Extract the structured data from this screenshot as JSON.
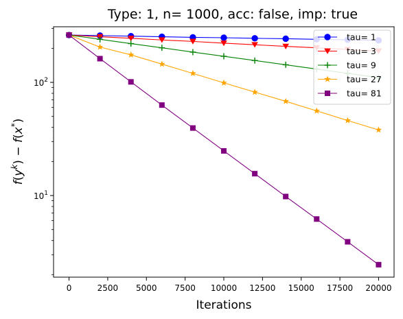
{
  "chart_data": {
    "type": "line",
    "title": "Type: 1, n= 1000, acc: false, imp: true",
    "xlabel": "Iterations",
    "ylabel_parts": {
      "f": "f",
      "lp": "(",
      "y": "y",
      "k": "k",
      "rp1": ")",
      "minus": " − ",
      "f2": "f",
      "lp2": "(",
      "x": "x",
      "star": "*",
      "rp2": ")"
    },
    "y_scale": "log",
    "xlim": [
      -1000,
      21000
    ],
    "ylim": [
      1.9,
      310
    ],
    "x_ticks": [
      0,
      2500,
      5000,
      7500,
      10000,
      12500,
      15000,
      17500,
      20000
    ],
    "y_ticks": [
      {
        "value": 10,
        "base": "10",
        "exp": "1"
      },
      {
        "value": 100,
        "base": "10",
        "exp": "2"
      }
    ],
    "grid": false,
    "legend_position": "top-right",
    "x": [
      0,
      2000,
      4000,
      6000,
      8000,
      10000,
      12000,
      14000,
      16000,
      18000,
      20000
    ],
    "series": [
      {
        "name": "tau= 1",
        "color": "#0000ff",
        "marker": "circle",
        "values": [
          262,
          259,
          256,
          253,
          250,
          248,
          245,
          243,
          240,
          238,
          235
        ]
      },
      {
        "name": "tau= 3",
        "color": "#ff0000",
        "marker": "triangle-down",
        "values": [
          262,
          253,
          245,
          237,
          230,
          222,
          215,
          208,
          202,
          195,
          189
        ]
      },
      {
        "name": "tau= 9",
        "color": "#008000",
        "marker": "plus",
        "values": [
          262,
          240,
          220,
          202,
          185,
          170,
          156,
          143,
          131,
          120,
          110
        ]
      },
      {
        "name": "tau= 27",
        "color": "#ffa500",
        "marker": "star",
        "values": [
          262,
          205,
          175,
          145,
          120,
          99,
          82,
          68,
          56,
          46,
          38
        ]
      },
      {
        "name": "tau= 81",
        "color": "#800080",
        "marker": "square",
        "values": [
          262,
          162,
          101,
          63,
          39.5,
          24.8,
          15.6,
          9.8,
          6.2,
          3.9,
          2.45
        ]
      }
    ]
  }
}
